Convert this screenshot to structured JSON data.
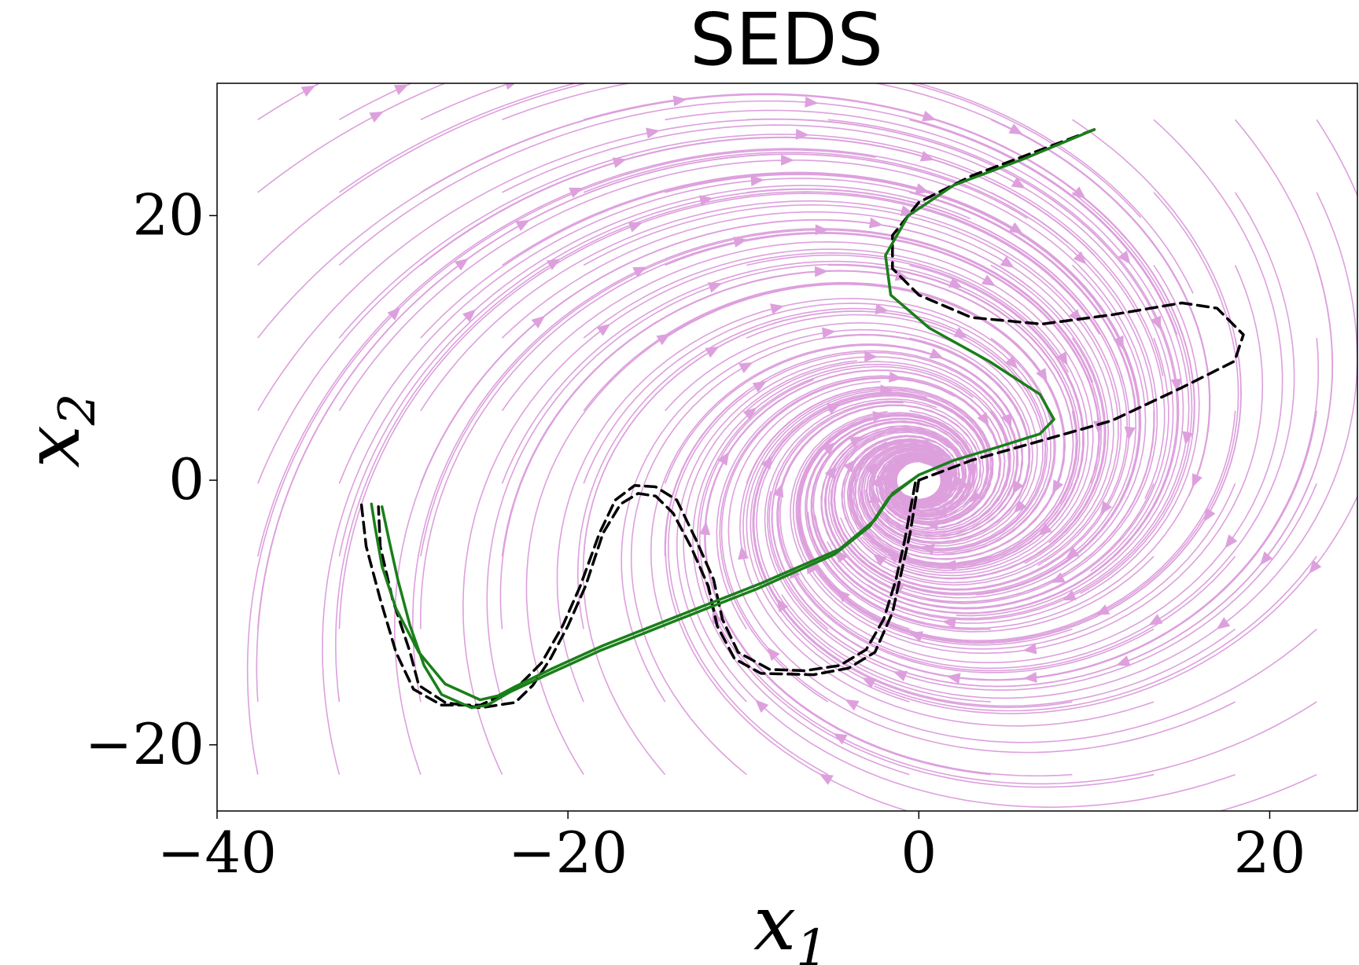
{
  "chart_data": {
    "type": "line",
    "title": "SEDS",
    "xlabel": "x",
    "xlabel_sub": "1",
    "ylabel": "x",
    "ylabel_sub": "2",
    "xlim": [
      -40,
      25
    ],
    "ylim": [
      -25,
      30
    ],
    "xticks": [
      -40,
      -20,
      0,
      20
    ],
    "yticks": [
      -20,
      0,
      20
    ],
    "xtick_labels": [
      "−40",
      "−20",
      "0",
      "20"
    ],
    "ytick_labels": [
      "−20",
      "0",
      "20"
    ],
    "grid": false,
    "legend": "none",
    "colors": {
      "stream": "#dda0dd",
      "reproduction": "#1a7f1a",
      "demonstration": "#000000"
    },
    "background_field": {
      "type": "streamplot",
      "attractor": [
        0,
        0
      ]
    },
    "series": [
      {
        "style": "dashed",
        "color": "#000000",
        "points": [
          [
            10,
            26.5
          ],
          [
            7,
            25
          ],
          [
            3,
            23
          ],
          [
            0,
            21
          ],
          [
            -1.5,
            18.5
          ],
          [
            -1.5,
            16
          ],
          [
            0,
            14
          ],
          [
            3,
            12.3
          ],
          [
            7,
            11.8
          ],
          [
            11,
            12.5
          ],
          [
            15,
            13.4
          ],
          [
            17,
            13
          ],
          [
            18.5,
            11
          ],
          [
            18,
            9
          ],
          [
            15,
            7
          ],
          [
            11,
            4.5
          ],
          [
            7,
            3
          ],
          [
            3,
            1.5
          ],
          [
            0,
            0
          ]
        ]
      },
      {
        "style": "dashed",
        "color": "#000000",
        "points": [
          [
            0,
            0
          ],
          [
            -0.5,
            -4
          ],
          [
            -1,
            -7
          ],
          [
            -1.5,
            -10
          ],
          [
            -2.5,
            -13
          ],
          [
            -4,
            -14.2
          ],
          [
            -6,
            -14.7
          ],
          [
            -9,
            -14.6
          ],
          [
            -10.5,
            -13.5
          ],
          [
            -11.5,
            -11
          ],
          [
            -12,
            -8
          ],
          [
            -13,
            -5
          ],
          [
            -14,
            -2.5
          ],
          [
            -15,
            -1.2
          ],
          [
            -16,
            -1
          ],
          [
            -17,
            -1.8
          ],
          [
            -18,
            -4
          ],
          [
            -19,
            -8
          ],
          [
            -20,
            -11
          ],
          [
            -21,
            -13.5
          ],
          [
            -22,
            -15.5
          ],
          [
            -23,
            -16.8
          ],
          [
            -25,
            -17.2
          ],
          [
            -27,
            -16.8
          ],
          [
            -28.5,
            -15.5
          ],
          [
            -29,
            -13
          ],
          [
            -30,
            -9
          ],
          [
            -30.7,
            -5
          ],
          [
            -30.8,
            -2
          ]
        ]
      },
      {
        "style": "dashed",
        "color": "#000000",
        "points": [
          [
            -0.2,
            -0.2
          ],
          [
            -0.8,
            -4.5
          ],
          [
            -1.3,
            -7.5
          ],
          [
            -2,
            -10.5
          ],
          [
            -3,
            -12.8
          ],
          [
            -4.5,
            -14
          ],
          [
            -6.5,
            -14.4
          ],
          [
            -8.5,
            -14.3
          ],
          [
            -10.3,
            -13
          ],
          [
            -11.2,
            -10.5
          ],
          [
            -11.7,
            -7.5
          ],
          [
            -12.7,
            -4.5
          ],
          [
            -13.8,
            -1.5
          ],
          [
            -15,
            -0.5
          ],
          [
            -16.2,
            -0.4
          ],
          [
            -17.3,
            -1.5
          ],
          [
            -18.2,
            -4
          ],
          [
            -19.3,
            -8
          ],
          [
            -20.3,
            -11
          ],
          [
            -21.5,
            -13.8
          ],
          [
            -23,
            -15.8
          ],
          [
            -25,
            -17
          ],
          [
            -27.2,
            -17
          ],
          [
            -28.8,
            -15.8
          ],
          [
            -29.8,
            -13
          ],
          [
            -30.7,
            -9
          ],
          [
            -31.5,
            -5
          ],
          [
            -31.8,
            -1.5
          ]
        ]
      },
      {
        "style": "solid",
        "color": "#1a7f1a",
        "points": [
          [
            10,
            26.5
          ],
          [
            6,
            24.3
          ],
          [
            2,
            22.3
          ],
          [
            -0.6,
            20
          ],
          [
            -1.9,
            17
          ],
          [
            -1.6,
            14
          ],
          [
            0.6,
            11.5
          ],
          [
            4,
            9
          ],
          [
            6.9,
            6.5
          ],
          [
            7.7,
            4.6
          ],
          [
            6.9,
            3.5
          ],
          [
            4.5,
            2.5
          ],
          [
            2,
            1.5
          ],
          [
            0,
            0.4
          ],
          [
            -1.5,
            -1
          ],
          [
            -2.5,
            -3
          ],
          [
            -4.5,
            -5.2
          ],
          [
            -9,
            -7.8
          ],
          [
            -14,
            -10.4
          ],
          [
            -18,
            -12.5
          ],
          [
            -21,
            -14.3
          ],
          [
            -23,
            -15.6
          ],
          [
            -24,
            -16.3
          ],
          [
            -25,
            -16.6
          ],
          [
            -27,
            -15.4
          ],
          [
            -28.5,
            -13
          ],
          [
            -29.8,
            -9.7
          ],
          [
            -30.6,
            -6.5
          ],
          [
            -31,
            -3.5
          ],
          [
            -31.2,
            -1.8
          ]
        ]
      },
      {
        "style": "solid",
        "color": "#1a7f1a",
        "points": [
          [
            0,
            0.4
          ],
          [
            -1.7,
            -1.3
          ],
          [
            -2.8,
            -3.5
          ],
          [
            -4.8,
            -5.6
          ],
          [
            -9.2,
            -8.2
          ],
          [
            -14.2,
            -10.8
          ],
          [
            -18.2,
            -12.9
          ],
          [
            -21.2,
            -14.7
          ],
          [
            -23.3,
            -16
          ],
          [
            -24.6,
            -17
          ],
          [
            -25.5,
            -17.2
          ],
          [
            -27.2,
            -16.2
          ],
          [
            -28.2,
            -14
          ],
          [
            -29,
            -11
          ],
          [
            -29.7,
            -7.5
          ],
          [
            -30.2,
            -4.5
          ],
          [
            -30.6,
            -2
          ]
        ]
      }
    ]
  }
}
